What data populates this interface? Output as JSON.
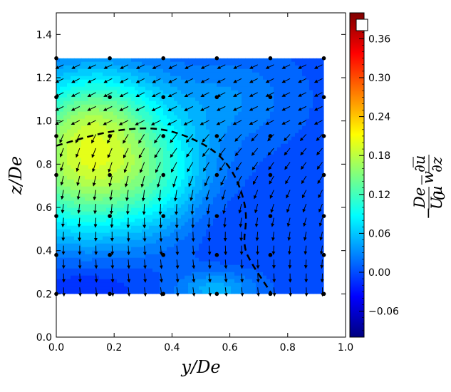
{
  "chart_data": {
    "type": "heatmap",
    "title": "",
    "xlabel": "y/De",
    "ylabel": "z/De",
    "xlim": [
      0.0,
      1.0
    ],
    "ylim": [
      0.0,
      1.5
    ],
    "xticks": [
      "0.0",
      "0.2",
      "0.4",
      "0.6",
      "0.8",
      "1.0"
    ],
    "yticks": [
      "0.0",
      "0.2",
      "0.4",
      "0.6",
      "0.8",
      "1.0",
      "1.2",
      "1.4"
    ],
    "field_extent": {
      "y": [
        0.0,
        0.925
      ],
      "z": [
        0.2,
        1.29
      ]
    },
    "colorbar": {
      "label": "−(De/U0u)·w̅ ∂u̅/∂z",
      "label_parts": {
        "minus": "−",
        "num1": "De",
        "den1": "U",
        "den1_sub": "0",
        "den1b": "u",
        "w": "w",
        "num2": "∂u",
        "den2": "∂z"
      },
      "range": [
        -0.1,
        0.4
      ],
      "ticks": [
        "−0.06",
        "0.00",
        "0.06",
        "0.12",
        "0.18",
        "0.24",
        "0.30",
        "0.36"
      ],
      "tick_values": [
        -0.06,
        0.0,
        0.06,
        0.12,
        0.18,
        0.24,
        0.3,
        0.36
      ]
    },
    "field_blobs": [
      {
        "y": 0.08,
        "z": 0.78,
        "value": 0.16,
        "sy": 0.18,
        "sz": 0.22
      },
      {
        "y": 0.15,
        "z": 1.05,
        "value": 0.08,
        "sy": 0.16,
        "sz": 0.16
      },
      {
        "y": 0.35,
        "z": 0.75,
        "value": 0.07,
        "sy": 0.14,
        "sz": 0.18
      },
      {
        "y": 0.6,
        "z": 1.1,
        "value": 0.03,
        "sy": 0.16,
        "sz": 0.15
      },
      {
        "y": 0.55,
        "z": 0.22,
        "value": 0.05,
        "sy": 0.1,
        "sz": 0.06
      },
      {
        "y": 0.1,
        "z": 0.25,
        "value": -0.02,
        "sy": 0.15,
        "sz": 0.08
      },
      {
        "y": 0.55,
        "z": 0.55,
        "value": -0.01,
        "sy": 0.1,
        "sz": 0.12
      }
    ],
    "field_base": 0.0,
    "data_points": {
      "y": [
        0.0,
        0.185,
        0.37,
        0.555,
        0.74,
        0.925
      ],
      "z": [
        1.29,
        1.11,
        0.93,
        0.75,
        0.56,
        0.38,
        0.2
      ]
    },
    "dashed_boundary": [
      [
        0.0,
        0.885
      ],
      [
        0.1,
        0.925
      ],
      [
        0.2,
        0.955
      ],
      [
        0.3,
        0.968
      ],
      [
        0.38,
        0.96
      ],
      [
        0.46,
        0.925
      ],
      [
        0.54,
        0.87
      ],
      [
        0.6,
        0.79
      ],
      [
        0.64,
        0.68
      ],
      [
        0.66,
        0.56
      ],
      [
        0.645,
        0.42
      ],
      [
        0.68,
        0.33
      ],
      [
        0.72,
        0.25
      ],
      [
        0.745,
        0.2
      ]
    ],
    "vector_vortex": {
      "y": 0.37,
      "z": 0.78,
      "scale": 0.022
    }
  },
  "colors": {
    "jet": [
      "#00007f",
      "#0000ff",
      "#007fff",
      "#00ffff",
      "#7fff7f",
      "#ffff00",
      "#ff7f00",
      "#ff0000",
      "#7f0000"
    ],
    "dashed": "#000000",
    "arrow": "#000000",
    "point": "#000000"
  }
}
